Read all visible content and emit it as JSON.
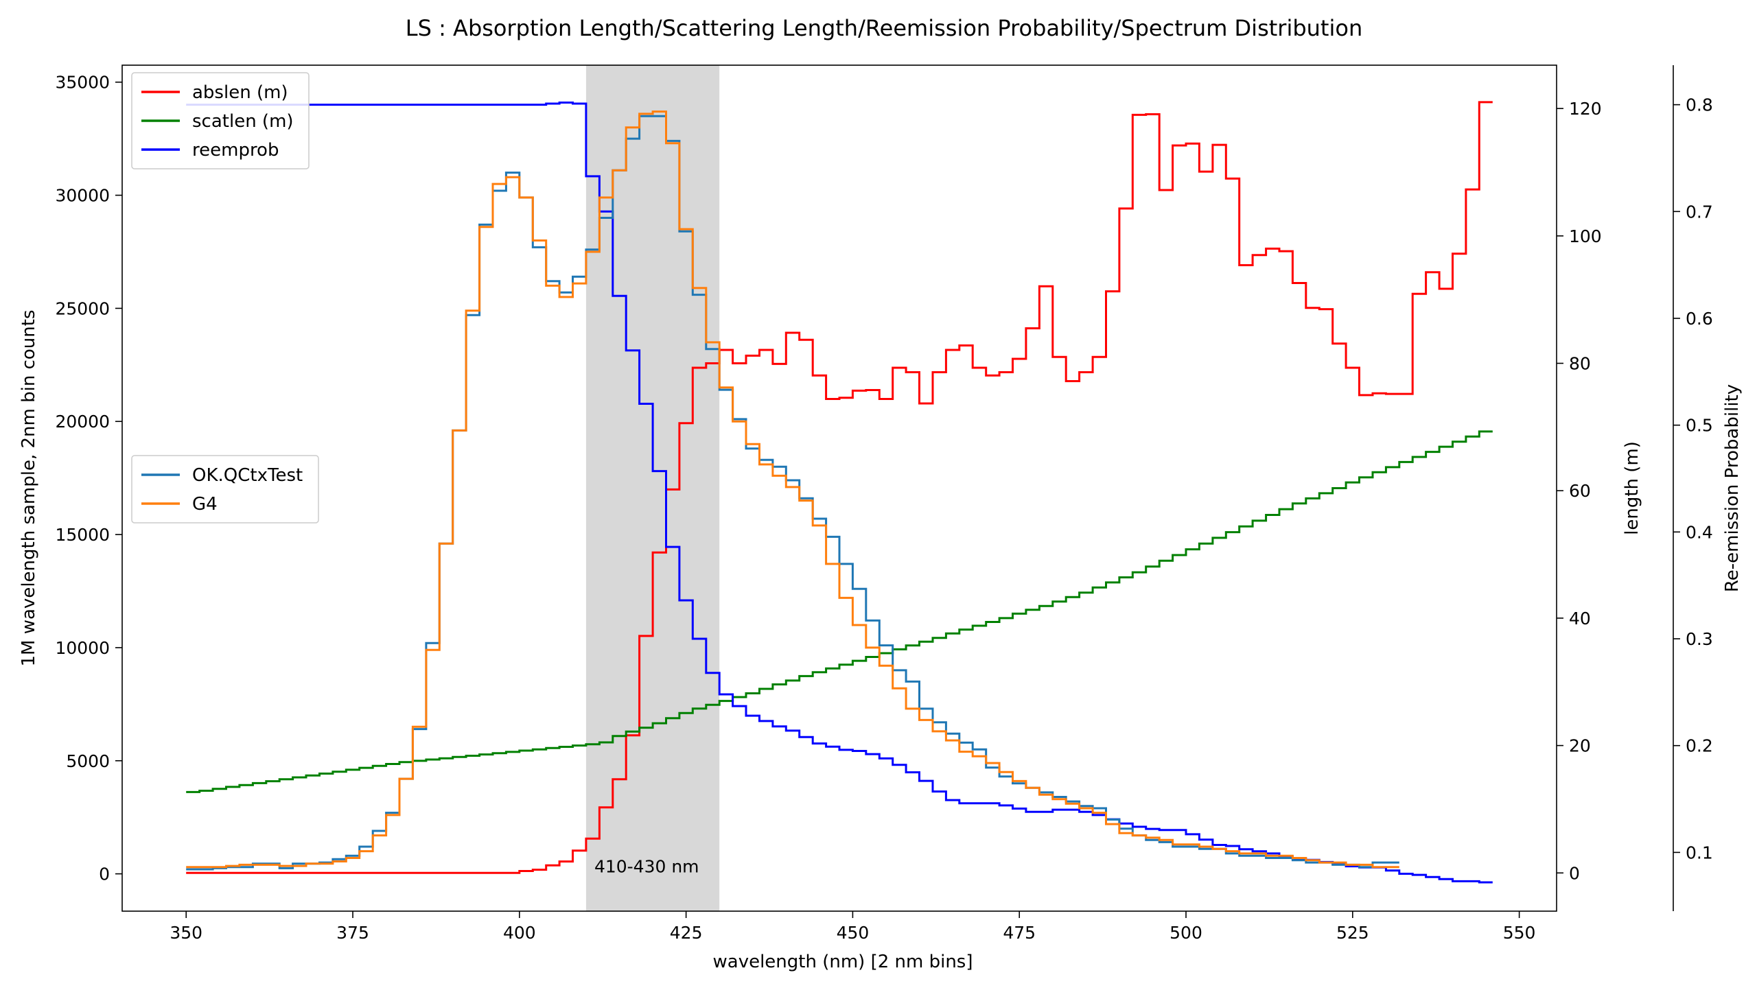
{
  "chart_data": {
    "type": "line",
    "title": "LS : Absorption Length/Scattering Length/Reemission Probability/Spectrum Distribution",
    "xlabel": "wavelength (nm) [2 nm bins]",
    "ylabel_left": "1M wavelength sample, 2nm bin counts",
    "ylabel_right1": "length (m)",
    "ylabel_right2": "Re-emission Probability",
    "xlim": [
      340.4,
      555.6
    ],
    "ylim_left": [
      -1650,
      35750
    ],
    "ylim_right1": [
      -6,
      126.8
    ],
    "ylim_right2": [
      0.045,
      0.837
    ],
    "xticks": [
      "350",
      "375",
      "400",
      "425",
      "450",
      "475",
      "500",
      "525",
      "550"
    ],
    "xtick_values": [
      350,
      375,
      400,
      425,
      450,
      475,
      500,
      525,
      550
    ],
    "yticks_left": [
      "0",
      "5000",
      "10000",
      "15000",
      "20000",
      "25000",
      "30000",
      "35000"
    ],
    "ytick_values_left": [
      0,
      5000,
      10000,
      15000,
      20000,
      25000,
      30000,
      35000
    ],
    "yticks_right1": [
      "0",
      "20",
      "40",
      "60",
      "80",
      "100",
      "120"
    ],
    "ytick_values_right1": [
      0,
      20,
      40,
      60,
      80,
      100,
      120
    ],
    "yticks_right2": [
      "0.1",
      "0.2",
      "0.3",
      "0.4",
      "0.5",
      "0.6",
      "0.7",
      "0.8"
    ],
    "ytick_values_right2": [
      0.1,
      0.2,
      0.3,
      0.4,
      0.5,
      0.6,
      0.7,
      0.8
    ],
    "band": {
      "x0": 410,
      "x1": 430,
      "label": "410-430 nm",
      "color": "#d8d8d8"
    },
    "bin_edges_start": 350,
    "bin_width": 2,
    "spectrum_series": [
      {
        "name": "OK.QCtxTest",
        "color": "#1f77b4",
        "axis": "left",
        "values": [
          200,
          200,
          250,
          300,
          300,
          450,
          450,
          250,
          450,
          450,
          500,
          650,
          800,
          1200,
          1900,
          2700,
          4200,
          6400,
          10200,
          14600,
          19600,
          24700,
          28700,
          30200,
          31000,
          29900,
          27700,
          26200,
          25700,
          26400,
          27600,
          29000,
          31100,
          32500,
          33500,
          33500,
          32400,
          28400,
          25600,
          23200,
          21400,
          20100,
          18800,
          18300,
          18000,
          17400,
          16600,
          15700,
          14900,
          13700,
          12600,
          11200,
          10100,
          9000,
          8500,
          7300,
          6700,
          6200,
          5800,
          5500,
          4700,
          4300,
          4000,
          3800,
          3600,
          3400,
          3200,
          3000,
          2900,
          2400,
          2000,
          1700,
          1500,
          1400,
          1200,
          1200,
          1100,
          1100,
          900,
          800,
          800,
          700,
          700,
          600,
          500,
          500,
          400,
          400,
          300,
          500,
          500
        ]
      },
      {
        "name": "G4",
        "color": "#ff7f0e",
        "axis": "left",
        "values": [
          300,
          300,
          300,
          350,
          400,
          400,
          400,
          350,
          350,
          450,
          450,
          550,
          700,
          1000,
          1700,
          2600,
          4200,
          6500,
          9900,
          14600,
          19600,
          24900,
          28600,
          30500,
          30800,
          29900,
          28000,
          26000,
          25500,
          26100,
          27500,
          29900,
          31100,
          33000,
          33600,
          33700,
          32300,
          28500,
          25900,
          23500,
          21500,
          20000,
          19000,
          18100,
          17600,
          17100,
          16500,
          15400,
          13700,
          12200,
          11000,
          10000,
          9200,
          8200,
          7300,
          6800,
          6300,
          5900,
          5400,
          5200,
          4900,
          4500,
          4100,
          3800,
          3500,
          3300,
          3100,
          2900,
          2700,
          2200,
          1800,
          1700,
          1600,
          1500,
          1300,
          1300,
          1200,
          1100,
          1000,
          900,
          900,
          800,
          800,
          700,
          600,
          500,
          500,
          400,
          400,
          300,
          300
        ]
      }
    ],
    "length_series": [
      {
        "name": "abslen (m)",
        "color": "#ff0000",
        "axis": "right1",
        "values": [
          0,
          0,
          0,
          0,
          0,
          0,
          0,
          0,
          0,
          0,
          0,
          0,
          0,
          0,
          0,
          0,
          0,
          0,
          0,
          0,
          0,
          0,
          0,
          0,
          0,
          0.3,
          0.5,
          1.2,
          1.8,
          3.5,
          5.4,
          10.3,
          14.7,
          21.6,
          37.2,
          50.3,
          60.2,
          70.6,
          79.3,
          80,
          82.1,
          80,
          81.2,
          82.1,
          79.9,
          84.8,
          83.7,
          78.1,
          74.4,
          74.6,
          75.7,
          75.8,
          74.4,
          79.3,
          78.6,
          73.7,
          78.6,
          82.1,
          82.8,
          79.3,
          78.1,
          78.6,
          80.7,
          85.5,
          92.1,
          81,
          77.2,
          78.6,
          81,
          91.3,
          104.3,
          119,
          119.1,
          107.2,
          114.2,
          114.5,
          110.1,
          114.3,
          109,
          95.4,
          97,
          98,
          97.6,
          92.6,
          88.7,
          88.5,
          83.1,
          79.3,
          75,
          75.3,
          75.2,
          75.2,
          90.9,
          94.3,
          91.7,
          97.2,
          107.3,
          121
        ]
      },
      {
        "name": "scatlen (m)",
        "color": "#008000",
        "axis": "right1",
        "values": [
          12.7,
          12.9,
          13.2,
          13.5,
          13.8,
          14.1,
          14.4,
          14.7,
          15.0,
          15.3,
          15.6,
          15.9,
          16.2,
          16.5,
          16.8,
          17.1,
          17.4,
          17.6,
          17.8,
          18.0,
          18.2,
          18.4,
          18.6,
          18.8,
          19.0,
          19.2,
          19.4,
          19.6,
          19.8,
          20.0,
          20.2,
          20.5,
          21.5,
          22.2,
          22.8,
          23.5,
          24.3,
          25.1,
          25.8,
          26.4,
          27.0,
          27.6,
          28.2,
          28.9,
          29.6,
          30.2,
          30.9,
          31.5,
          32.1,
          32.7,
          33.3,
          33.9,
          34.5,
          35.1,
          35.7,
          36.3,
          36.9,
          37.6,
          38.2,
          38.8,
          39.4,
          40.0,
          40.7,
          41.3,
          41.9,
          42.6,
          43.3,
          44.0,
          44.8,
          45.6,
          46.4,
          47.2,
          48.1,
          49.0,
          49.9,
          50.8,
          51.7,
          52.6,
          53.5,
          54.4,
          55.3,
          56.2,
          57.1,
          58.0,
          58.8,
          59.6,
          60.4,
          61.3,
          62.1,
          62.9,
          63.7,
          64.5,
          65.3,
          66.1,
          66.9,
          67.7,
          68.5,
          69.3
        ]
      },
      {
        "name": "reemprob",
        "color": "#0000ff",
        "axis": "right2",
        "values": [
          0.8,
          0.8,
          0.8,
          0.8,
          0.8,
          0.8,
          0.8,
          0.8,
          0.8,
          0.8,
          0.8,
          0.8,
          0.8,
          0.8,
          0.8,
          0.8,
          0.8,
          0.8,
          0.8,
          0.8,
          0.8,
          0.8,
          0.8,
          0.8,
          0.8,
          0.8,
          0.8,
          0.801,
          0.802,
          0.801,
          0.733,
          0.7,
          0.621,
          0.57,
          0.52,
          0.457,
          0.386,
          0.336,
          0.3,
          0.268,
          0.248,
          0.237,
          0.228,
          0.223,
          0.218,
          0.214,
          0.208,
          0.202,
          0.199,
          0.196,
          0.195,
          0.192,
          0.188,
          0.182,
          0.175,
          0.167,
          0.157,
          0.149,
          0.146,
          0.146,
          0.146,
          0.144,
          0.141,
          0.138,
          0.138,
          0.14,
          0.14,
          0.138,
          0.135,
          0.131,
          0.127,
          0.124,
          0.122,
          0.121,
          0.121,
          0.117,
          0.112,
          0.107,
          0.106,
          0.103,
          0.101,
          0.099,
          0.096,
          0.094,
          0.093,
          0.091,
          0.089,
          0.087,
          0.086,
          0.086,
          0.083,
          0.08,
          0.079,
          0.077,
          0.075,
          0.073,
          0.073,
          0.072
        ]
      }
    ],
    "legend_lengths": {
      "placement": "upper-left",
      "entries": [
        "abslen (m)",
        "scatlen (m)",
        "reemprob"
      ]
    },
    "legend_spectrum": {
      "placement": "center-left",
      "entries": [
        "OK.QCtxTest",
        "G4"
      ]
    },
    "grid": false
  }
}
